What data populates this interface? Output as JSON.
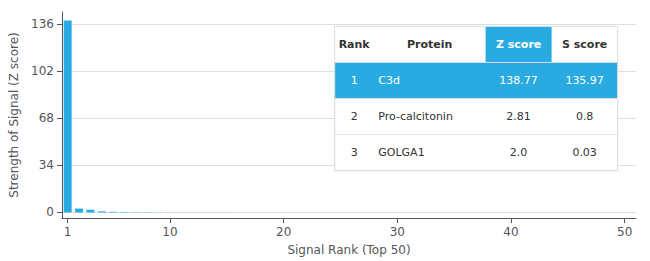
{
  "chart_data": {
    "type": "bar",
    "xlabel": "Signal Rank (Top 50)",
    "ylabel": "Strength of Signal (Z score)",
    "x": [
      1,
      2,
      3,
      4,
      5,
      6,
      7,
      8,
      9,
      10,
      11,
      12,
      13,
      14,
      15,
      16,
      17,
      18,
      19,
      20,
      21,
      22,
      23,
      24,
      25,
      26,
      27,
      28,
      29,
      30,
      31,
      32,
      33,
      34,
      35,
      36,
      37,
      38,
      39,
      40,
      41,
      42,
      43,
      44,
      45,
      46,
      47,
      48,
      49,
      50
    ],
    "values": [
      138.77,
      2.81,
      2.0,
      0.8,
      0.5,
      0.3,
      0.2,
      0.15,
      0.1,
      0.08,
      0.06,
      0.05,
      0.04,
      0.03,
      0.025,
      0.02,
      0.018,
      0.015,
      0.012,
      0.01,
      0.009,
      0.008,
      0.007,
      0.006,
      0.005,
      0.005,
      0.004,
      0.004,
      0.003,
      0.003,
      0.003,
      0.002,
      0.002,
      0.002,
      0.002,
      0.001,
      0.001,
      0.001,
      0.001,
      0.001,
      0.001,
      0.001,
      0.001,
      0.001,
      0.001,
      0.001,
      0.001,
      0.001,
      0.001,
      0.001
    ],
    "color": "#29ABE2",
    "xlim": [
      0.5,
      51
    ],
    "xticks": [
      1,
      10,
      20,
      30,
      40,
      50
    ],
    "ylim": [
      -4,
      145
    ],
    "yticks": [
      0,
      34,
      68,
      102,
      136
    ],
    "grid": true,
    "table": {
      "columns": [
        "Rank",
        "Protein",
        "Z score",
        "S score"
      ],
      "rows": [
        [
          "1",
          "C3d",
          "138.77",
          "135.97"
        ],
        [
          "2",
          "Pro-calcitonin",
          "2.81",
          "0.8"
        ],
        [
          "3",
          "GOLGA1",
          "2.0",
          "0.03"
        ]
      ]
    }
  }
}
